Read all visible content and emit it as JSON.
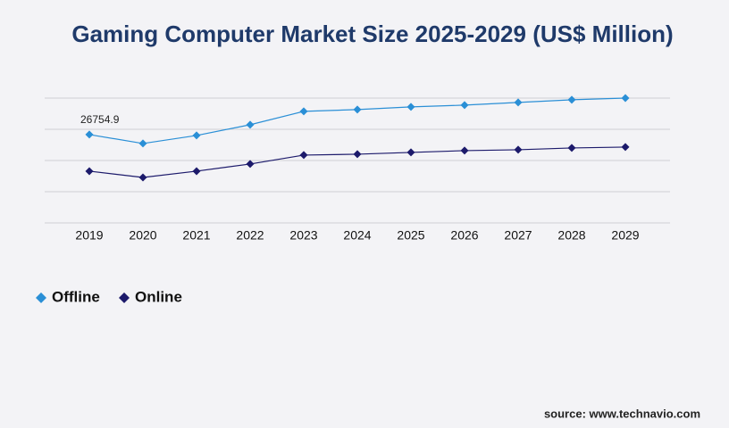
{
  "chart_data": {
    "type": "line",
    "title": "Gaming Computer Market Size 2025-2029 (US$ Million)",
    "categories": [
      "2019",
      "2020",
      "2021",
      "2022",
      "2023",
      "2024",
      "2025",
      "2026",
      "2027",
      "2028",
      "2029"
    ],
    "series": [
      {
        "name": "Offline",
        "color": "#2a8fd6",
        "values": [
          26754.9,
          24050,
          26480,
          29730,
          33780,
          34320,
          35130,
          35670,
          36480,
          37290,
          37800
        ]
      },
      {
        "name": "Online",
        "color": "#1c1a6b",
        "values": [
          15670,
          13780,
          15670,
          17840,
          20540,
          20810,
          21350,
          21890,
          22160,
          22700,
          22970
        ]
      }
    ],
    "ylim": [
      0,
      37800
    ],
    "yticks": [
      0,
      9450,
      18900,
      28350,
      37800
    ],
    "grid": true,
    "source": "source: www.technavio.com"
  }
}
